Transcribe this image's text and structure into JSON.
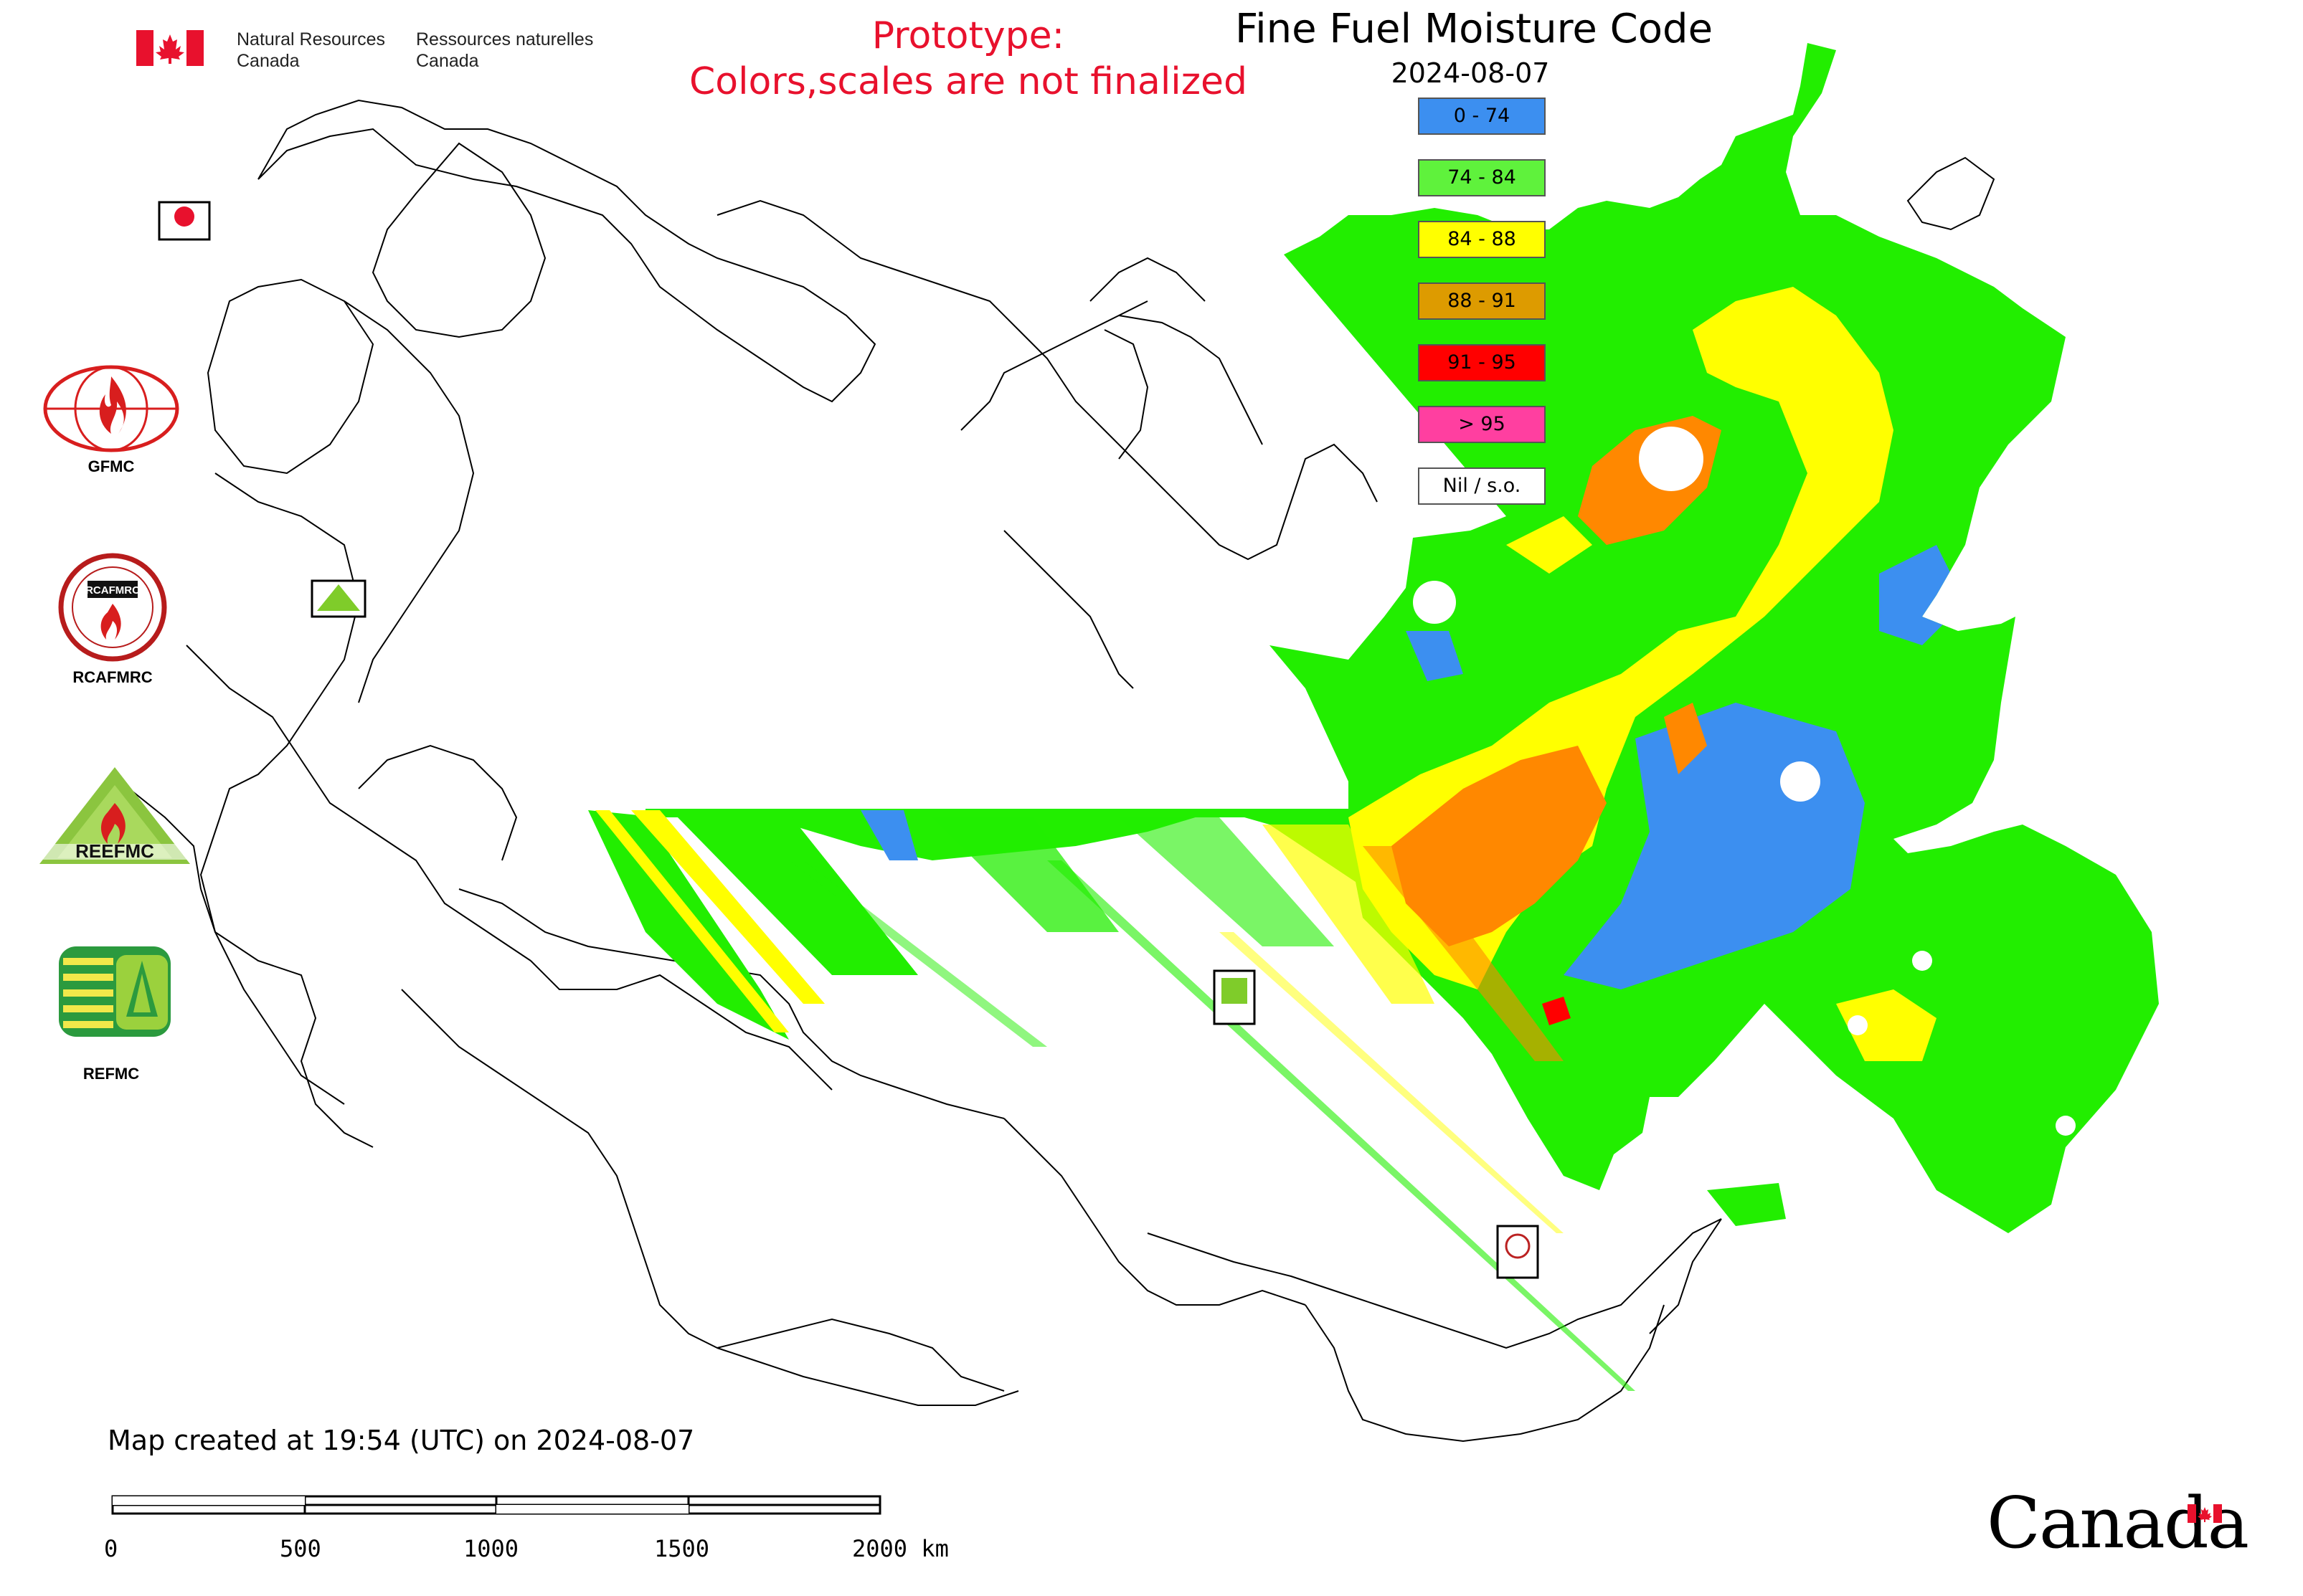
{
  "header": {
    "agency_en": [
      "Natural Resources",
      "Canada"
    ],
    "agency_fr": [
      "Ressources naturelles",
      "Canada"
    ],
    "prototype_line1": "Prototype:",
    "prototype_line2": "Colors,scales are not finalized",
    "title": "Fine Fuel Moisture Code",
    "date": "2024-08-07"
  },
  "legend": [
    {
      "label": "0 - 74",
      "color": "#3c8ff0"
    },
    {
      "label": "74 - 84",
      "color": "#5ff23c"
    },
    {
      "label": "84 - 88",
      "color": "#ffff00"
    },
    {
      "label": "88 - 91",
      "color": "#dd9b00"
    },
    {
      "label": "91 - 95",
      "color": "#ff0000"
    },
    {
      "label": "> 95",
      "color": "#ff3fa0"
    },
    {
      "label": "Nil / s.o.",
      "color": "#ffffff"
    }
  ],
  "logos": {
    "gfmc": "GFMC",
    "rcafmrc": "RCAFMRC",
    "reefmc": "REEFMC",
    "refmc": "REFMC",
    "rcafmrc_ring_text": "RCAFMRC"
  },
  "map_colors": {
    "blue": "#3c8ff0",
    "green": "#22ee00",
    "yellow": "#ffff00",
    "orange": "#ff8800",
    "red": "#ff0000",
    "outline": "#000000"
  },
  "footer": {
    "created": "Map created at 19:54 (UTC) on 2024-08-07",
    "scale_ticks": [
      "0",
      "500",
      "1000",
      "1500",
      "2000 km"
    ],
    "wordmark": "Canada"
  }
}
